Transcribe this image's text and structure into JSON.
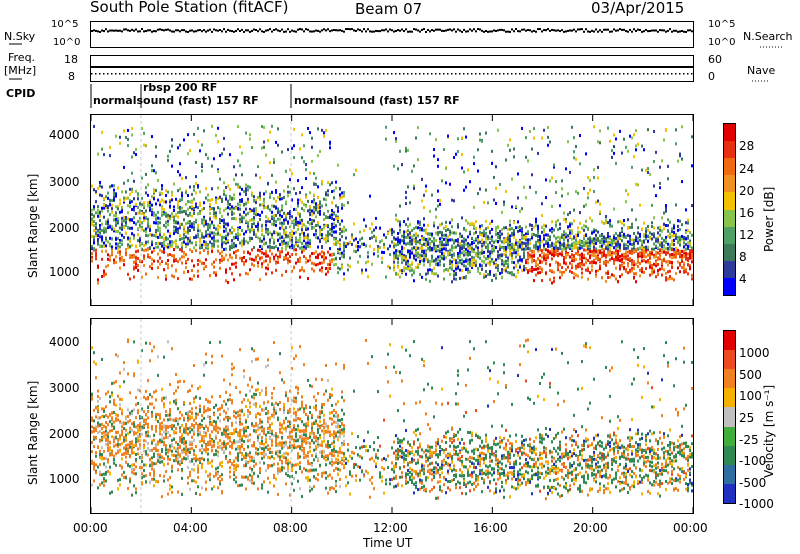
{
  "header": {
    "station": "South Pole Station (fitACF)",
    "beam": "Beam 07",
    "date": "03/Apr/2015"
  },
  "panels": {
    "nsky_label": "N.Sky",
    "nsky_ticks": [
      "10^5",
      "10^0"
    ],
    "nsearch_label": "N.Search",
    "nsearch_ticks": [
      "10^5",
      "10^0"
    ],
    "freq_label_1": "Freq.",
    "freq_label_2": "[MHz]",
    "freq_ticks": [
      "18",
      "8"
    ],
    "nave_label": "Nave",
    "nave_ticks": [
      "60",
      "0"
    ],
    "cpid_label": "CPID",
    "cpid_entries": [
      {
        "label": "normalsound (fast) 157 RF",
        "start": "00:00"
      },
      {
        "label": "rbsp 200 RF",
        "start": "02:00"
      },
      {
        "label": "normalsound (fast) 157 RF",
        "start": "08:00"
      }
    ]
  },
  "chart_data": [
    {
      "type": "heatmap",
      "name": "power",
      "ylabel": "Slant Range [km]",
      "xlabel": "",
      "yticks": [
        "1000",
        "2000",
        "3000",
        "4000"
      ],
      "colorbar_label": "Power [dB]",
      "colorbar_ticks": [
        "28",
        "24",
        "20",
        "16",
        "12",
        "8",
        "4"
      ],
      "colorbar_colors": [
        "#0000ff",
        "#2e3a9c",
        "#3d7a5a",
        "#4fa064",
        "#88c34a",
        "#f2c200",
        "#f09020",
        "#ef6a10",
        "#e83010",
        "#e00000"
      ]
    },
    {
      "type": "heatmap",
      "name": "velocity",
      "ylabel": "Slant Range [km]",
      "xlabel": "Time UT",
      "yticks": [
        "1000",
        "2000",
        "3000",
        "4000"
      ],
      "xticks": [
        "00:00",
        "04:00",
        "08:00",
        "12:00",
        "16:00",
        "20:00",
        "00:00"
      ],
      "colorbar_label": "Velocity [m s⁻¹]",
      "colorbar_ticks": [
        "1000",
        "500",
        "100",
        "25",
        "-25",
        "-100",
        "-500",
        "-1000"
      ],
      "colorbar_colors": [
        "#2030c0",
        "#2f6ea0",
        "#2e8a52",
        "#3fae3a",
        "#c0c0c0",
        "#f5b000",
        "#f08020",
        "#ec4a20",
        "#e00000"
      ]
    }
  ]
}
